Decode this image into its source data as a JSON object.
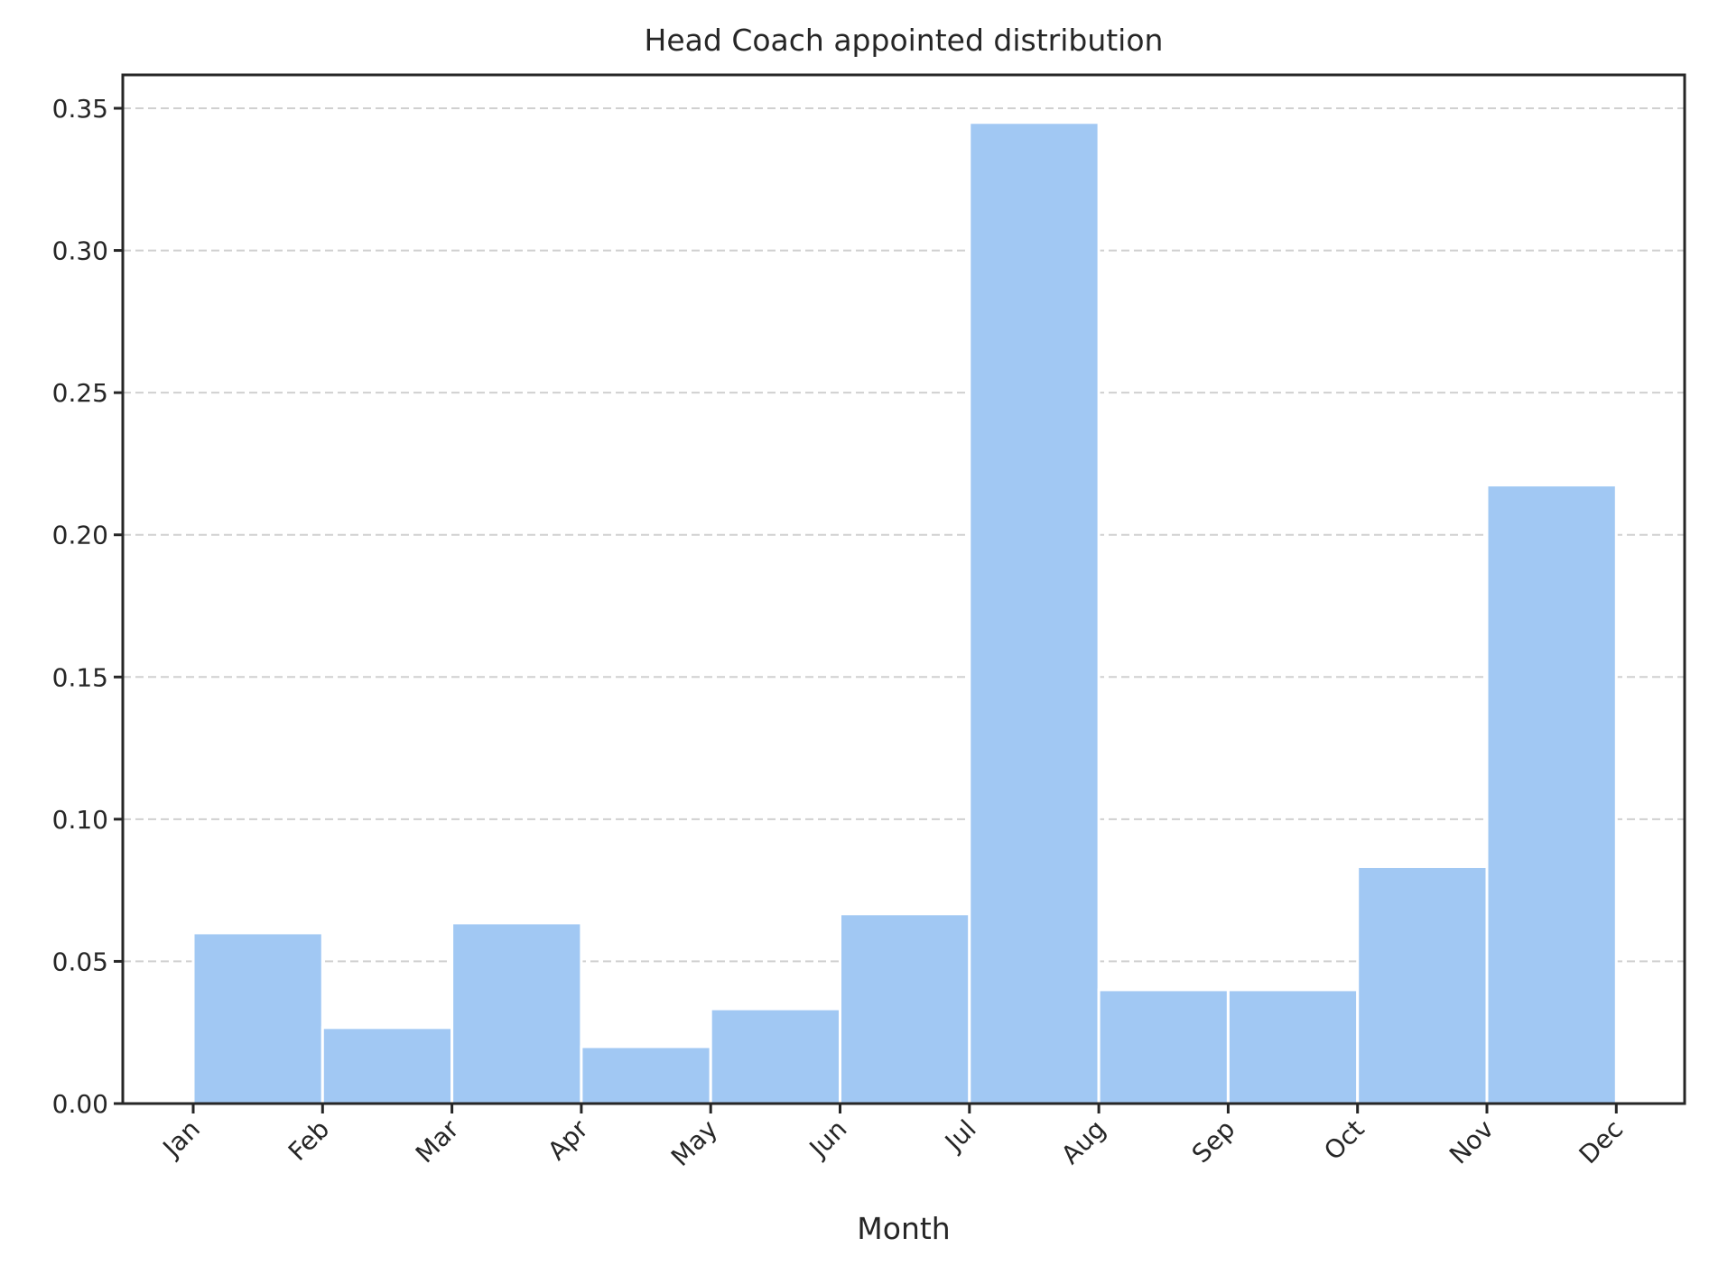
{
  "chart_data": {
    "type": "bar",
    "histogram": true,
    "title": "Head Coach appointed distribution",
    "xlabel": "Month",
    "ylabel": "",
    "x_ticks": [
      "Jan",
      "Feb",
      "Mar",
      "Apr",
      "May",
      "Jun",
      "Jul",
      "Aug",
      "Sep",
      "Oct",
      "Nov",
      "Dec"
    ],
    "bin_edges": [
      1,
      2,
      3,
      4,
      5,
      6,
      7,
      8,
      9,
      10,
      11,
      12
    ],
    "values": [
      0.06,
      0.0267,
      0.0635,
      0.02,
      0.0333,
      0.0667,
      0.345,
      0.04,
      0.04,
      0.0833,
      0.2175
    ],
    "y_ticks": [
      "0.00",
      "0.05",
      "0.10",
      "0.15",
      "0.20",
      "0.25",
      "0.30",
      "0.35"
    ],
    "ylim": [
      0,
      0.363
    ],
    "grid": "horizontal-dashed",
    "bar_color": "#a1c8f3",
    "grid_color": "#d0d0d0",
    "text_color": "#262626"
  }
}
